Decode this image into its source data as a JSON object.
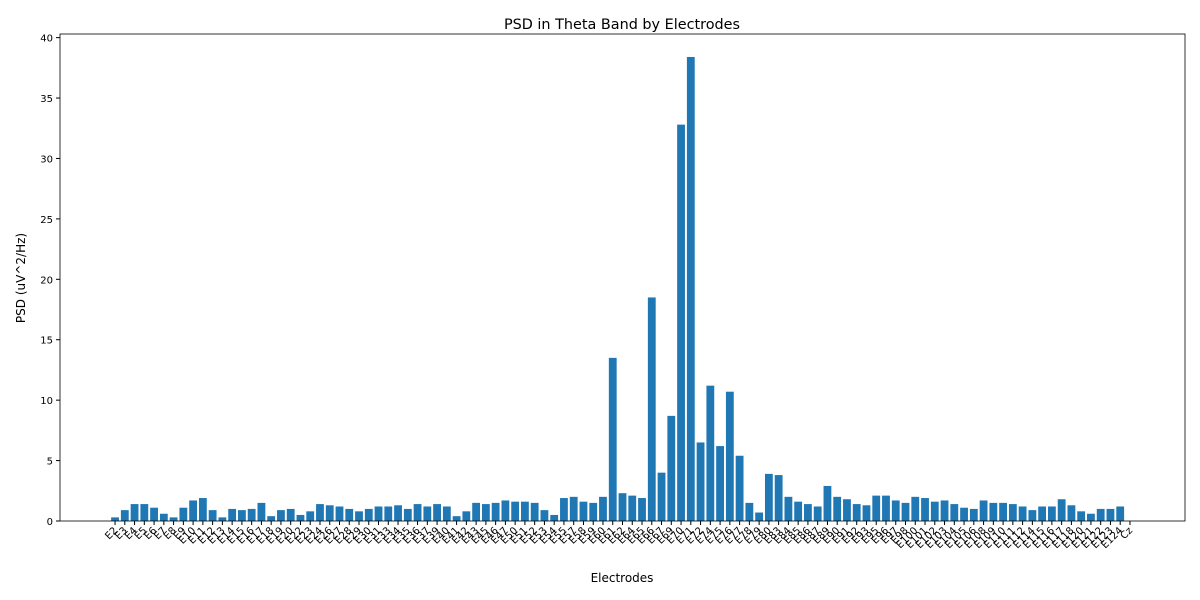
{
  "chart_data": {
    "type": "bar",
    "title": "PSD in Theta Band by Electrodes",
    "x_label": "Electrodes",
    "y_label": "PSD (uV^2/Hz)",
    "categories": [
      "E2",
      "E3",
      "E4",
      "E5",
      "E6",
      "E7",
      "E8",
      "E9",
      "E10",
      "E11",
      "E12",
      "E13",
      "E14",
      "E15",
      "E16",
      "E17",
      "E18",
      "E19",
      "E20",
      "E22",
      "E23",
      "E24",
      "E26",
      "E27",
      "E28",
      "E29",
      "E30",
      "E31",
      "E33",
      "E34",
      "E35",
      "E36",
      "E37",
      "E39",
      "E40",
      "E41",
      "E42",
      "E43",
      "E45",
      "E46",
      "E47",
      "E50",
      "E51",
      "E52",
      "E53",
      "E54",
      "E55",
      "E57",
      "E58",
      "E59",
      "E60",
      "E61",
      "E62",
      "E64",
      "E65",
      "E66",
      "E67",
      "E69",
      "E70",
      "E71",
      "E72",
      "E74",
      "E75",
      "E76",
      "E77",
      "E78",
      "E79",
      "E80",
      "E83",
      "E84",
      "E85",
      "E86",
      "E87",
      "E89",
      "E90",
      "E91",
      "E92",
      "E93",
      "E95",
      "E96",
      "E97",
      "E98",
      "E100",
      "E101",
      "E102",
      "E103",
      "E104",
      "E105",
      "E106",
      "E108",
      "E109",
      "E110",
      "E111",
      "E112",
      "E114",
      "E115",
      "E116",
      "E117",
      "E118",
      "E120",
      "E121",
      "E122",
      "E123",
      "E124",
      "Cz"
    ],
    "values": [
      0.3,
      0.9,
      1.4,
      1.4,
      1.1,
      0.6,
      0.3,
      1.1,
      1.7,
      1.9,
      0.9,
      0.3,
      1.0,
      0.9,
      1.0,
      1.5,
      0.4,
      0.9,
      1.0,
      0.5,
      0.8,
      1.4,
      1.3,
      1.2,
      1.0,
      0.8,
      1.0,
      1.2,
      1.2,
      1.3,
      1.0,
      1.4,
      1.2,
      1.4,
      1.2,
      0.4,
      0.8,
      1.5,
      1.4,
      1.5,
      1.7,
      1.6,
      1.6,
      1.5,
      0.9,
      0.5,
      1.9,
      2.0,
      1.6,
      1.5,
      2.0,
      13.5,
      2.3,
      2.1,
      1.9,
      18.5,
      4.0,
      8.7,
      32.8,
      38.4,
      6.5,
      11.2,
      6.2,
      10.7,
      5.4,
      1.5,
      0.7,
      3.9,
      3.8,
      2.0,
      1.6,
      1.4,
      1.2,
      2.9,
      2.0,
      1.8,
      1.4,
      1.3,
      2.1,
      2.1,
      1.7,
      1.5,
      2.0,
      1.9,
      1.6,
      1.7,
      1.4,
      1.1,
      1.0,
      1.7,
      1.5,
      1.5,
      1.4,
      1.2,
      0.9,
      1.2,
      1.2,
      1.8,
      1.3,
      0.8,
      0.6,
      1.0,
      1.0,
      1.2,
      0
    ],
    "color": "#1f77b4",
    "ylim": [
      0,
      40.3
    ],
    "yticks": [
      0,
      5,
      10,
      15,
      20,
      25,
      30,
      35,
      40
    ]
  }
}
